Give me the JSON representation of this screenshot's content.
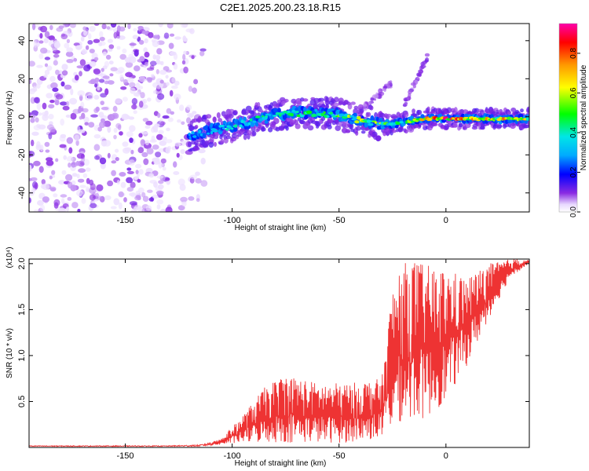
{
  "title": "C2E1.2025.200.23.18.R15",
  "chart_data": [
    {
      "type": "heatmap",
      "xlabel": "Height of straight line (km)",
      "ylabel": "Frequency (Hz)",
      "xlim": [
        -195,
        39
      ],
      "ylim": [
        -50,
        49
      ],
      "x_ticks": [
        -150,
        -100,
        -50,
        0
      ],
      "y_ticks": [
        -40,
        -20,
        0,
        20,
        40
      ],
      "colorbar": {
        "label": "Normalized spectral amplitude",
        "range": [
          0.0,
          0.95
        ],
        "ticks": [
          0.0,
          0.2,
          0.4,
          0.6,
          0.8
        ]
      },
      "ridge": {
        "x": [
          -120,
          -110,
          -100,
          -90,
          -80,
          -70,
          -60,
          -50,
          -40,
          -30,
          -20,
          -10,
          0,
          10,
          20,
          30,
          39
        ],
        "y": [
          -10,
          -7,
          -5,
          -2,
          1,
          2,
          2,
          1,
          -2,
          -4,
          -3,
          -1,
          -1,
          -1,
          -1,
          -1,
          -1
        ],
        "amplitude": [
          0.3,
          0.35,
          0.4,
          0.45,
          0.45,
          0.5,
          0.5,
          0.55,
          0.65,
          0.6,
          0.5,
          0.8,
          0.9,
          0.85,
          0.8,
          0.75,
          0.7
        ]
      },
      "noise_region": {
        "x": [
          -195,
          -115
        ],
        "y": [
          -50,
          49
        ]
      },
      "secondary_branches": [
        {
          "x": [
            -20,
            -8
          ],
          "y": [
            5,
            33
          ]
        },
        {
          "x": [
            -40,
            -25
          ],
          "y": [
            3,
            18
          ]
        }
      ]
    },
    {
      "type": "line",
      "xlabel": "Height of straight line (km)",
      "ylabel": "SNR (10 * v/v)",
      "y_scale_label": "(x10⁴)",
      "xlim": [
        -195,
        39
      ],
      "ylim": [
        0,
        2.05
      ],
      "x_ticks": [
        -150,
        -100,
        -50,
        0
      ],
      "y_ticks": [
        0.5,
        1.0,
        1.5,
        2.0
      ],
      "y_tick_labels": [
        "0.5",
        "1.0",
        "1.5",
        "2.0"
      ],
      "series": [
        {
          "color": "#ee3333",
          "envelope_x": [
            -195,
            -130,
            -115,
            -105,
            -95,
            -85,
            -75,
            -60,
            -45,
            -30,
            -25,
            -20,
            -15,
            -10,
            -5,
            0,
            10,
            20,
            30,
            39
          ],
          "envelope_low": [
            0.01,
            0.01,
            0.01,
            0.03,
            0.05,
            0.05,
            0.05,
            0.05,
            0.05,
            0.1,
            0.2,
            0.3,
            0.3,
            0.3,
            0.4,
            0.5,
            0.9,
            1.4,
            1.85,
            2.0
          ],
          "envelope_high": [
            0.02,
            0.02,
            0.03,
            0.1,
            0.35,
            0.65,
            0.8,
            0.7,
            0.7,
            0.75,
            1.75,
            2.0,
            2.05,
            2.0,
            1.95,
            1.95,
            1.85,
            2.0,
            2.05,
            2.05
          ]
        }
      ]
    }
  ]
}
